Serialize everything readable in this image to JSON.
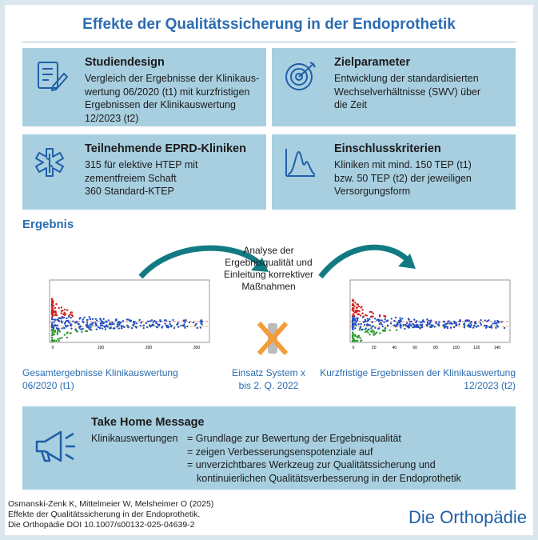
{
  "title": "Effekte der Qualitätssicherung in der Endoprothetik",
  "boxes": [
    {
      "title": "Studiendesign",
      "lines": [
        "Vergleich der Ergebnisse der Klinikaus-",
        "wertung 06/2020 (t1) mit kurzfristigen",
        "Ergebnissen der Klinikauswertung",
        "12/2023 (t2)"
      ]
    },
    {
      "title": "Zielparameter",
      "lines": [
        "Entwicklung der standardisierten",
        "Wechselverhältnisse (SWV) über",
        "die Zeit"
      ]
    },
    {
      "title": "Teilnehmende EPRD-Kliniken",
      "lines": [
        "315 für elektive HTEP mit",
        "zementfreiem Schaft",
        "360 Standard-KTEP"
      ]
    },
    {
      "title": "Einschlusskriterien",
      "lines": [
        "Kliniken mit mind. 150 TEP (t1)",
        "bzw. 50 TEP (t2) der jeweiligen",
        "Versorgungsform"
      ]
    }
  ],
  "result": {
    "heading": "Ergebnis",
    "left_plot": {
      "xticks": [
        "0",
        "100",
        "200",
        "300"
      ]
    },
    "right_plot": {
      "xticks": [
        "0",
        "20",
        "40",
        "60",
        "80",
        "100",
        "120",
        "140"
      ]
    },
    "middle_text": [
      "Analyse der",
      "Ergebnisqualität und",
      "Einleitung korrektiver",
      "Maßnahmen"
    ],
    "left_caption": [
      "Gesamtergebnisse Klinikauswertung",
      "06/2020 (t1)"
    ],
    "middle_caption": [
      "Einsatz System x",
      "bis 2. Q. 2022"
    ],
    "right_caption": [
      "Kurzfristige Ergebnissen der Klinikauswertung",
      "12/2023 (t2)"
    ]
  },
  "take_home": {
    "title": "Take Home Message",
    "subject": "Klinikauswertungen",
    "lines": [
      "= Grundlage zur Bewertung der Ergebnisqualität",
      "= zeigen Verbesserungsenspotenziale auf",
      "= unverzichtbares Werkzeug zur Qualitätssicherung und",
      "kontinuierlichen Qualitätsverbesserung in der Endoprothetik"
    ]
  },
  "footer": {
    "citation": [
      "Osmanski-Zenk K, Mittelmeier W, Melsheimer O (2025)",
      "Effekte der Qualitätssicherung in der Endoprothetik.",
      "Die Orthopädie DOI 10.1007/s00132-025-04639-2"
    ],
    "brand": "Die Orthopädie"
  }
}
